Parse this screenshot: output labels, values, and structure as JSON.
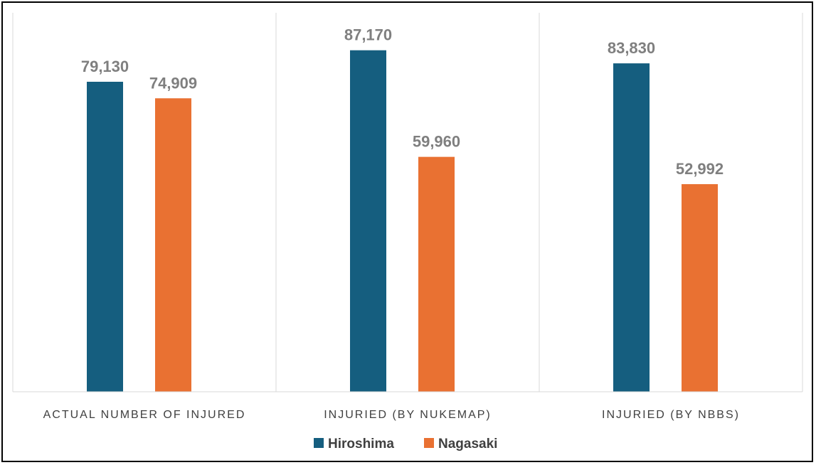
{
  "chart_data": {
    "type": "bar",
    "categories": [
      "ACTUAL NUMBER OF INJURED",
      "INJURIED (BY NUKEMAP)",
      "INJURIED (BY NBBS)"
    ],
    "series": [
      {
        "name": "Hiroshima",
        "color": "#155E7F",
        "values": [
          79130,
          87170,
          83830
        ],
        "labels": [
          "79,130",
          "87,170",
          "83,830"
        ]
      },
      {
        "name": "Nagasaki",
        "color": "#E97132",
        "values": [
          74909,
          59960,
          52992
        ],
        "labels": [
          "74,909",
          "59,960",
          "52,992"
        ]
      }
    ],
    "title": "",
    "xlabel": "",
    "ylabel": "",
    "ylim": [
      0,
      100000
    ],
    "grid": false,
    "legend": "bottom"
  }
}
